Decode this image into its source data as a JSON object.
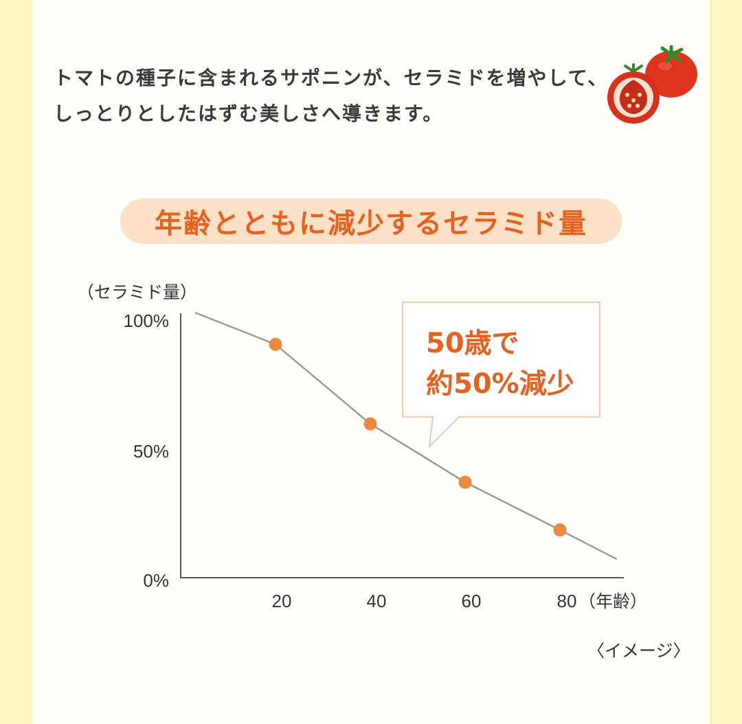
{
  "intro": {
    "line1": "トマトの種子に含まれるサポニンが、セラミドを増やして、",
    "line2": "しっとりとしたはずむ美しさへ導きます。"
  },
  "heading": "年齢とともに減少するセラミド量",
  "colors": {
    "accent": "#e8601c",
    "marker": "#ec8a3c",
    "pill": "#fce1c7",
    "line": "#999999",
    "side": "#fdf6c0"
  },
  "icons": {
    "illustration": "tomato-icon"
  },
  "chart_data": {
    "type": "line",
    "y_axis_label": "（セラミド量）",
    "x_axis_label": "（年齢）",
    "y_ticks": [
      "100%",
      "50%",
      "0%"
    ],
    "x_ticks": [
      "20",
      "40",
      "60",
      "80"
    ],
    "xlim": [
      0,
      93
    ],
    "ylim": [
      0,
      100
    ],
    "series": [
      {
        "x": [
          3,
          20,
          40,
          60,
          80,
          92
        ],
        "y": [
          100,
          88,
          58,
          36,
          18,
          7
        ],
        "markers_at": [
          20,
          40,
          60,
          80
        ]
      }
    ],
    "annotation": {
      "line1": "50歳で",
      "line2": "約50%減少"
    },
    "caption": "〈イメージ〉"
  }
}
